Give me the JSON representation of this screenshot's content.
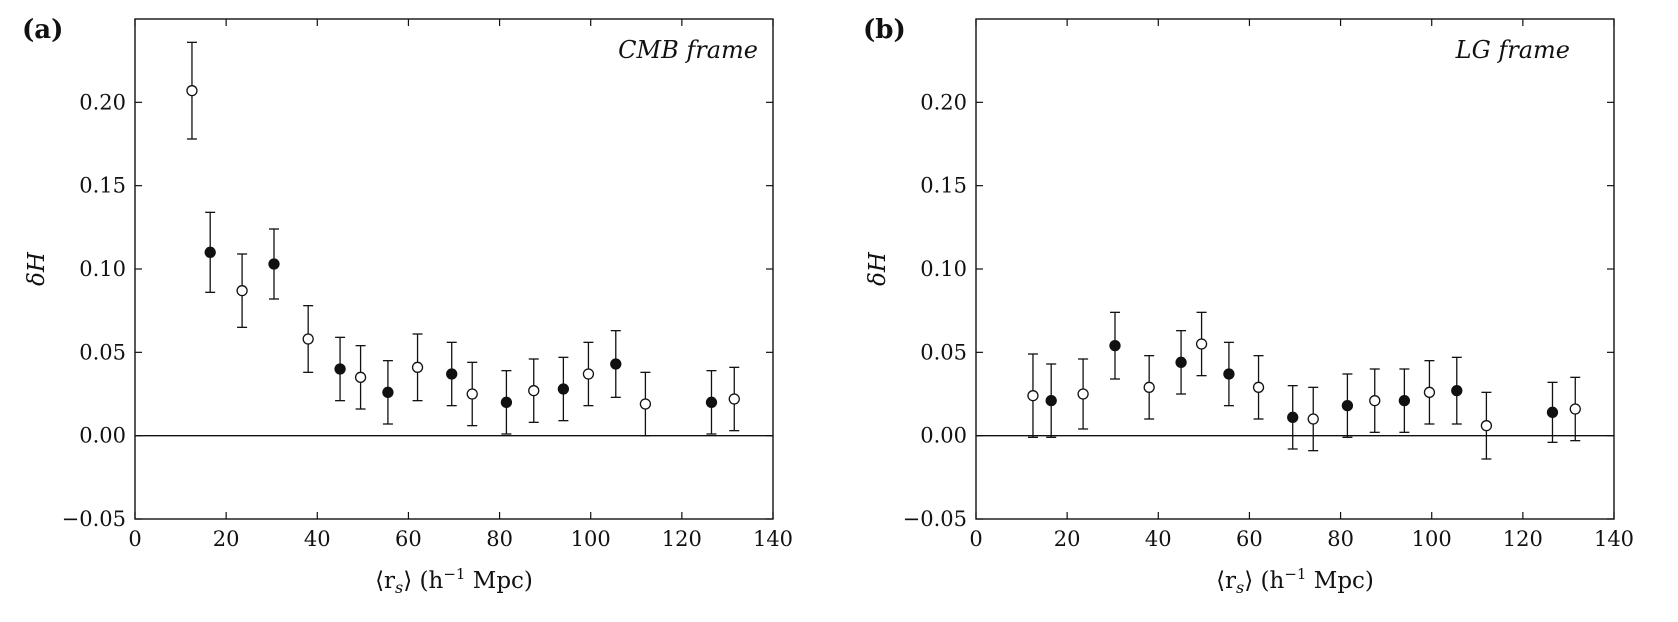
{
  "chart_data": [
    {
      "type": "scatter",
      "panel_label": "(a)",
      "frame_label": "CMB frame",
      "xlabel": {
        "pre": "⟨r",
        "sub": "s",
        "mid": "⟩ (h",
        "sup": "−1",
        "post": " Mpc)"
      },
      "ylabel": "δH",
      "xlim": [
        0,
        140
      ],
      "ylim": [
        -0.05,
        0.25
      ],
      "x_ticks": [
        "0",
        "20",
        "40",
        "60",
        "80",
        "100",
        "120",
        "140"
      ],
      "y_ticks": [
        "−0.05",
        "0.00",
        "0.05",
        "0.10",
        "0.15",
        "0.20"
      ],
      "reference_line_y": 0,
      "series": [
        {
          "marker": "filled",
          "points": [
            {
              "x": 16.5,
              "y": 0.11,
              "err": 0.024
            },
            {
              "x": 30.5,
              "y": 0.103,
              "err": 0.021
            },
            {
              "x": 45,
              "y": 0.04,
              "err": 0.019
            },
            {
              "x": 55.5,
              "y": 0.026,
              "err": 0.019
            },
            {
              "x": 69.5,
              "y": 0.037,
              "err": 0.019
            },
            {
              "x": 81.5,
              "y": 0.02,
              "err": 0.019
            },
            {
              "x": 94,
              "y": 0.028,
              "err": 0.019
            },
            {
              "x": 105.5,
              "y": 0.043,
              "err": 0.02
            },
            {
              "x": 126.5,
              "y": 0.02,
              "err": 0.019
            }
          ]
        },
        {
          "marker": "open",
          "points": [
            {
              "x": 12.5,
              "y": 0.207,
              "err": 0.029
            },
            {
              "x": 23.5,
              "y": 0.087,
              "err": 0.022
            },
            {
              "x": 38,
              "y": 0.058,
              "err": 0.02
            },
            {
              "x": 49.5,
              "y": 0.035,
              "err": 0.019
            },
            {
              "x": 62,
              "y": 0.041,
              "err": 0.02
            },
            {
              "x": 74,
              "y": 0.025,
              "err": 0.019
            },
            {
              "x": 87.5,
              "y": 0.027,
              "err": 0.019
            },
            {
              "x": 99.5,
              "y": 0.037,
              "err": 0.019
            },
            {
              "x": 112,
              "y": 0.019,
              "err": 0.019
            },
            {
              "x": 131.5,
              "y": 0.022,
              "err": 0.019
            }
          ]
        }
      ]
    },
    {
      "type": "scatter",
      "panel_label": "(b)",
      "frame_label": "LG frame",
      "xlabel": {
        "pre": "⟨r",
        "sub": "s",
        "mid": "⟩ (h",
        "sup": "−1",
        "post": " Mpc)"
      },
      "ylabel": "δH",
      "xlim": [
        0,
        140
      ],
      "ylim": [
        -0.05,
        0.25
      ],
      "x_ticks": [
        "0",
        "20",
        "40",
        "60",
        "80",
        "100",
        "120",
        "140"
      ],
      "y_ticks": [
        "−0.05",
        "0.00",
        "0.05",
        "0.10",
        "0.15",
        "0.20"
      ],
      "reference_line_y": 0,
      "series": [
        {
          "marker": "filled",
          "points": [
            {
              "x": 16.5,
              "y": 0.021,
              "err": 0.022
            },
            {
              "x": 30.5,
              "y": 0.054,
              "err": 0.02
            },
            {
              "x": 45,
              "y": 0.044,
              "err": 0.019
            },
            {
              "x": 55.5,
              "y": 0.037,
              "err": 0.019
            },
            {
              "x": 69.5,
              "y": 0.011,
              "err": 0.019
            },
            {
              "x": 81.5,
              "y": 0.018,
              "err": 0.019
            },
            {
              "x": 94,
              "y": 0.021,
              "err": 0.019
            },
            {
              "x": 105.5,
              "y": 0.027,
              "err": 0.02
            },
            {
              "x": 126.5,
              "y": 0.014,
              "err": 0.018
            }
          ]
        },
        {
          "marker": "open",
          "points": [
            {
              "x": 12.5,
              "y": 0.024,
              "err": 0.025
            },
            {
              "x": 23.5,
              "y": 0.025,
              "err": 0.021
            },
            {
              "x": 38,
              "y": 0.029,
              "err": 0.019
            },
            {
              "x": 49.5,
              "y": 0.055,
              "err": 0.019
            },
            {
              "x": 62,
              "y": 0.029,
              "err": 0.019
            },
            {
              "x": 74,
              "y": 0.01,
              "err": 0.019
            },
            {
              "x": 87.5,
              "y": 0.021,
              "err": 0.019
            },
            {
              "x": 99.5,
              "y": 0.026,
              "err": 0.019
            },
            {
              "x": 112,
              "y": 0.006,
              "err": 0.02
            },
            {
              "x": 131.5,
              "y": 0.016,
              "err": 0.019
            }
          ]
        }
      ]
    }
  ]
}
